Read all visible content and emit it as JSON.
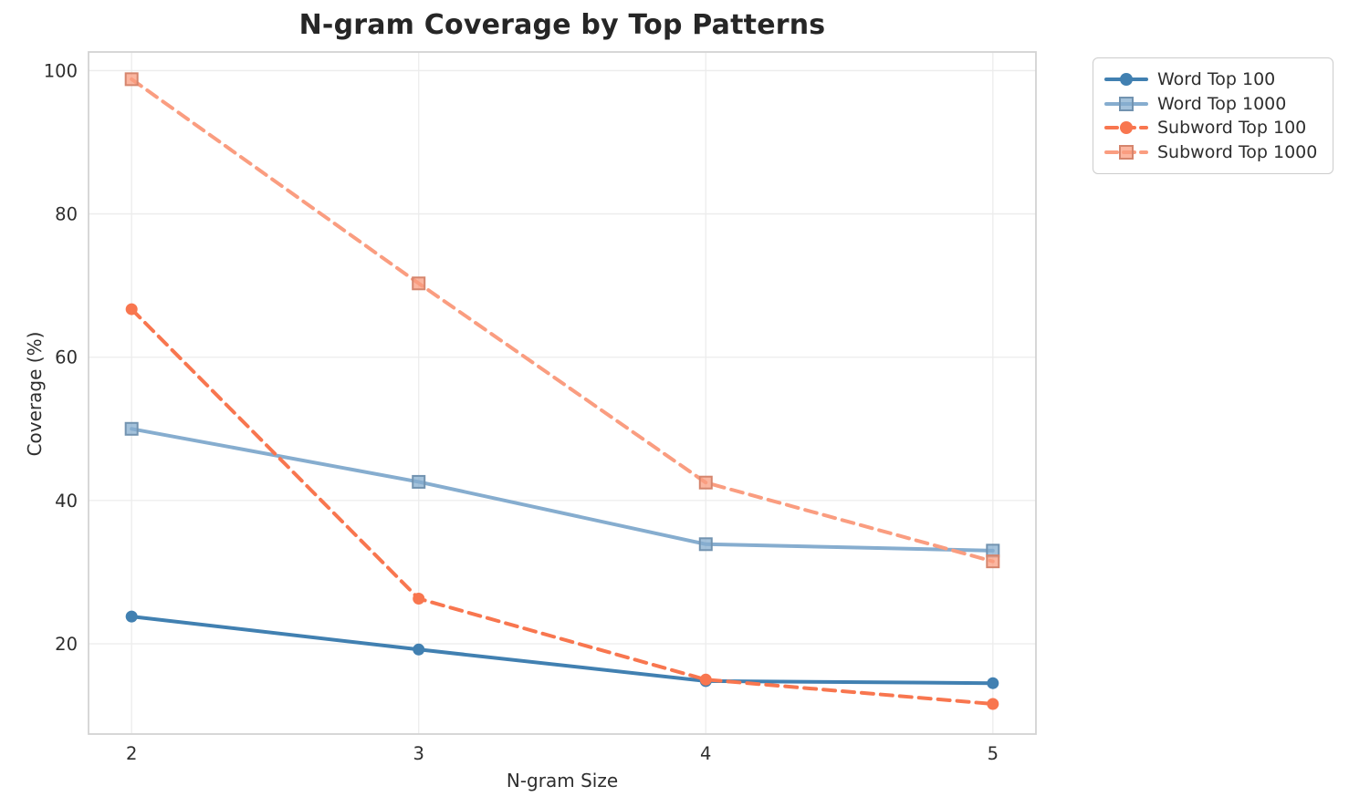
{
  "chart_data": {
    "type": "line",
    "title": "N-gram Coverage by Top Patterns",
    "xlabel": "N-gram Size",
    "ylabel": "Coverage (%)",
    "x": [
      2,
      3,
      4,
      5
    ],
    "xticks": [
      "2",
      "3",
      "4",
      "5"
    ],
    "yticks": [
      "20",
      "40",
      "60",
      "80",
      "100"
    ],
    "ytick_values": [
      20,
      40,
      60,
      80,
      100
    ],
    "xlim": [
      1.85,
      5.15
    ],
    "ylim": [
      7.4,
      102.6
    ],
    "grid": true,
    "legend_position": "outside-top-right",
    "grid_color": "#ececec",
    "spine_color": "#d3d3d3",
    "tick_text_color": "#2e2e2e",
    "series": [
      {
        "name": "Word Top 100",
        "values": [
          23.8,
          19.2,
          14.8,
          14.5
        ],
        "color": "#4180B1",
        "marker": "circle",
        "line": "solid"
      },
      {
        "name": "Word Top 1000",
        "values": [
          50.0,
          42.6,
          33.9,
          33.0
        ],
        "color": "#86ADCF",
        "marker": "square",
        "line": "solid"
      },
      {
        "name": "Subword Top 100",
        "values": [
          66.7,
          26.3,
          15.0,
          11.6
        ],
        "color": "#F8764F",
        "marker": "circle",
        "line": "dashed"
      },
      {
        "name": "Subword Top 1000",
        "values": [
          98.8,
          70.3,
          42.5,
          31.5
        ],
        "color": "#FA9D80",
        "marker": "square",
        "line": "dashed"
      }
    ]
  }
}
